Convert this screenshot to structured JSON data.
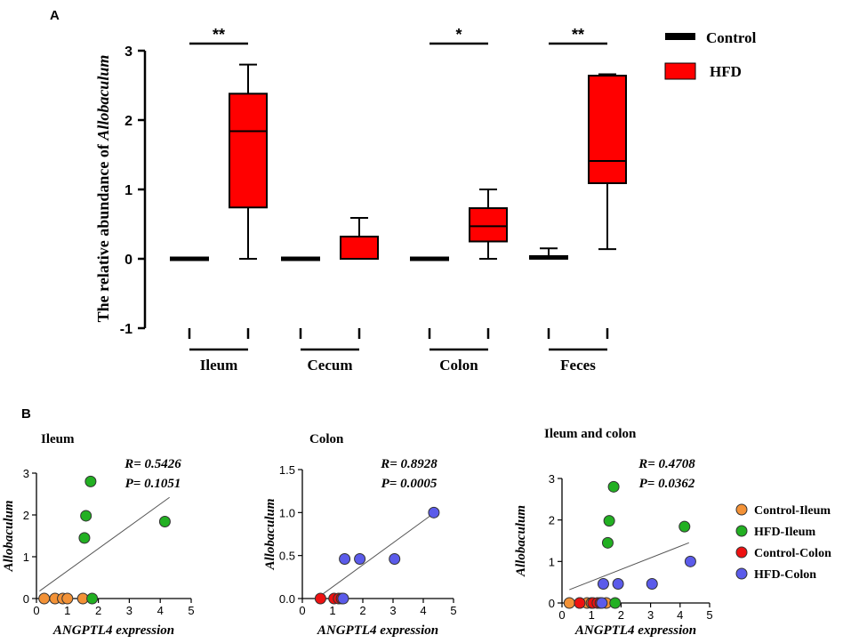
{
  "colors": {
    "control": "#000000",
    "hfd": "#ff0000",
    "control_ileum": "#f39237",
    "hfd_ileum": "#22b022",
    "control_colon": "#ee1111",
    "hfd_colon": "#5b5bea",
    "fit_line": "#555555"
  },
  "chart_data": [
    {
      "type": "box",
      "panel_label": "A",
      "title": "",
      "ylabel_prefix": "The relative abundance of ",
      "ylabel_italic": "Allobaculum",
      "ylim": [
        -1,
        3
      ],
      "yticks": [
        "-1",
        "0",
        "1",
        "2",
        "3"
      ],
      "groups": [
        "Ileum",
        "Cecum",
        "Colon",
        "Feces"
      ],
      "legend": [
        {
          "name": "Control",
          "color": "#000000"
        },
        {
          "name": "HFD",
          "color": "#ff0000"
        }
      ],
      "series": [
        {
          "name": "Control",
          "boxes": [
            {
              "min": 0,
              "q1": 0,
              "median": 0,
              "q3": 0,
              "max": 0
            },
            {
              "min": 0,
              "q1": 0,
              "median": 0,
              "q3": 0,
              "max": 0
            },
            {
              "min": 0,
              "q1": 0,
              "median": 0,
              "q3": 0,
              "max": 0
            },
            {
              "min": 0,
              "q1": 0,
              "median": 0,
              "q3": 0.02,
              "max": 0.15
            }
          ]
        },
        {
          "name": "HFD",
          "boxes": [
            {
              "min": 0,
              "q1": 0.74,
              "median": 1.84,
              "q3": 2.38,
              "max": 2.8
            },
            {
              "min": 0,
              "q1": 0,
              "median": 0,
              "q3": 0.32,
              "max": 0.59
            },
            {
              "min": 0,
              "q1": 0.25,
              "median": 0.47,
              "q3": 0.73,
              "max": 1.0
            },
            {
              "min": 0.14,
              "q1": 1.09,
              "median": 1.41,
              "q3": 2.64,
              "max": 2.66
            }
          ]
        }
      ],
      "significance": [
        {
          "group": "Ileum",
          "label": "**"
        },
        {
          "group": "Colon",
          "label": "*"
        },
        {
          "group": "Feces",
          "label": "**"
        }
      ]
    },
    {
      "type": "scatter",
      "panel_label": "B",
      "title": "Ileum",
      "xlabel": "ANGPTL4 expression",
      "ylabel": "Allobaculum",
      "xlim": [
        0,
        5
      ],
      "ylim": [
        0,
        3
      ],
      "xticks": [
        "0",
        "1",
        "2",
        "3",
        "4",
        "5"
      ],
      "yticks": [
        "0",
        "1",
        "2",
        "3"
      ],
      "r": "R= 0.5426",
      "p": "P= 0.1051",
      "fit": {
        "x": [
          0.1,
          4.3
        ],
        "y": [
          0.18,
          2.42
        ]
      },
      "series": [
        {
          "name": "Control-Ileum",
          "color": "#f39237",
          "x": [
            0.25,
            0.6,
            0.85,
            1.0,
            1.5
          ],
          "y": [
            0,
            0,
            0,
            0,
            0
          ]
        },
        {
          "name": "HFD-Ileum",
          "color": "#22b022",
          "x": [
            1.55,
            1.6,
            1.75,
            1.8,
            4.15
          ],
          "y": [
            1.45,
            1.98,
            2.8,
            0,
            1.84
          ]
        }
      ]
    },
    {
      "type": "scatter",
      "title": "Colon",
      "xlabel": "ANGPTL4 expression",
      "ylabel": "Allobaculum",
      "xlim": [
        0,
        5
      ],
      "ylim": [
        0,
        1.5
      ],
      "xticks": [
        "0",
        "1",
        "2",
        "3",
        "4",
        "5"
      ],
      "yticks": [
        "0.0",
        "0.5",
        "1.0",
        "1.5"
      ],
      "r": "R= 0.8928",
      "p": "P= 0.0005",
      "fit": {
        "x": [
          0.55,
          4.3
        ],
        "y": [
          0.02,
          0.98
        ]
      },
      "series": [
        {
          "name": "Control-Colon",
          "color": "#ee1111",
          "x": [
            0.6,
            1.05,
            1.2,
            1.3
          ],
          "y": [
            0,
            0,
            0,
            0
          ]
        },
        {
          "name": "HFD-Colon",
          "color": "#5b5bea",
          "x": [
            1.35,
            1.4,
            1.9,
            3.05,
            4.35
          ],
          "y": [
            0,
            0.46,
            0.46,
            0.46,
            1.0
          ]
        }
      ]
    },
    {
      "type": "scatter",
      "title": "Ileum and colon",
      "xlabel": "ANGPTL4 expression",
      "ylabel": "Allobaculum",
      "xlim": [
        0,
        5
      ],
      "ylim": [
        0,
        3
      ],
      "xticks": [
        "0",
        "1",
        "2",
        "3",
        "4",
        "5"
      ],
      "yticks": [
        "0",
        "1",
        "2",
        "3"
      ],
      "r": "R= 0.4708",
      "p": "P= 0.0362",
      "fit": {
        "x": [
          0.25,
          4.3
        ],
        "y": [
          0.32,
          1.45
        ]
      },
      "series": [
        {
          "name": "Control-Ileum",
          "color": "#f39237",
          "x": [
            0.25,
            0.6,
            0.85,
            1.0,
            1.5
          ],
          "y": [
            0,
            0,
            0,
            0,
            0
          ]
        },
        {
          "name": "HFD-Ileum",
          "color": "#22b022",
          "x": [
            1.55,
            1.6,
            1.75,
            1.8,
            4.15
          ],
          "y": [
            1.45,
            1.98,
            2.8,
            0,
            1.84
          ]
        },
        {
          "name": "Control-Colon",
          "color": "#ee1111",
          "x": [
            0.6,
            1.05,
            1.2,
            1.3
          ],
          "y": [
            0,
            0,
            0,
            0
          ]
        },
        {
          "name": "HFD-Colon",
          "color": "#5b5bea",
          "x": [
            1.35,
            1.4,
            1.9,
            3.05,
            4.35
          ],
          "y": [
            0,
            0.46,
            0.46,
            0.46,
            1.0
          ]
        }
      ]
    }
  ],
  "scatter_legend": [
    {
      "name": "Control-Ileum",
      "color": "#f39237"
    },
    {
      "name": "HFD-Ileum",
      "color": "#22b022"
    },
    {
      "name": "Control-Colon",
      "color": "#ee1111"
    },
    {
      "name": "HFD-Colon",
      "color": "#5b5bea"
    }
  ]
}
